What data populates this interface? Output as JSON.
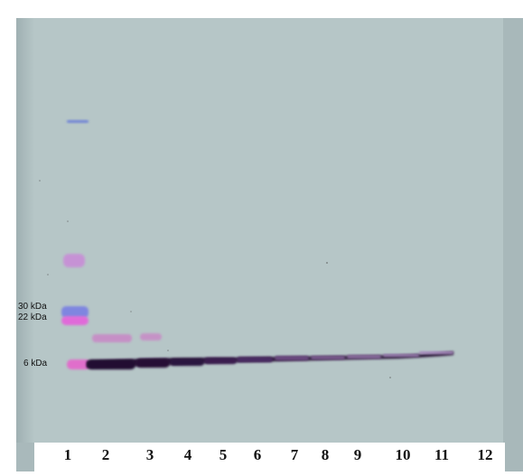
{
  "figure": {
    "markers": [
      {
        "label": "30 kDa"
      },
      {
        "label": "22 kDa"
      },
      {
        "label": "6 kDa"
      }
    ],
    "lanes": [
      "1",
      "2",
      "3",
      "4",
      "5",
      "6",
      "7",
      "8",
      "9",
      "10",
      "11",
      "12"
    ]
  },
  "colors": {
    "membrane": "#b6c6c7",
    "membrane_edge": "#a3b3b4",
    "band_dark": "#2a1238",
    "band_pink": "#c88ac6",
    "ladder_blue": "#7f86e0",
    "ladder_magenta": "#e06bd9"
  }
}
